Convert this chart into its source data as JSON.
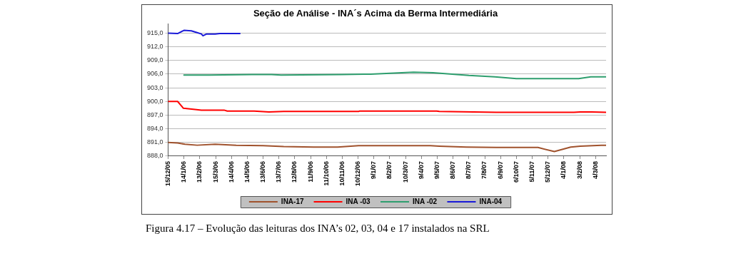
{
  "chart_data": {
    "type": "line",
    "title": "Seção de Análise - INA´s Acima da Berma Intermediária",
    "annotations": [
      "Figura 4.17 – Evolução das leituras dos INA’s 02, 03, 04 e 17 instalados na SRL"
    ],
    "legend": "bottom",
    "grid": "y",
    "marker": "none",
    "line_style": "solid",
    "xlim": [
      "2005-12-15",
      "2008-03-24"
    ],
    "ylim": [
      888,
      917
    ],
    "yticks": [
      {
        "value": 888,
        "label": "888,0"
      },
      {
        "value": 891,
        "label": "891,0"
      },
      {
        "value": 894,
        "label": "894,0"
      },
      {
        "value": 897,
        "label": "897,0"
      },
      {
        "value": 900,
        "label": "900,0"
      },
      {
        "value": 903,
        "label": "903,0"
      },
      {
        "value": 906,
        "label": "906,0"
      },
      {
        "value": 909,
        "label": "909,0"
      },
      {
        "value": 912,
        "label": "912,0"
      },
      {
        "value": 915,
        "label": "915,0"
      }
    ],
    "xticks": [
      {
        "value": "2005-12-15",
        "label": "15/12/05"
      },
      {
        "value": "2006-01-14",
        "label": "14/1/06"
      },
      {
        "value": "2006-02-13",
        "label": "13/2/06"
      },
      {
        "value": "2006-03-15",
        "label": "15/3/06"
      },
      {
        "value": "2006-04-14",
        "label": "14/4/06"
      },
      {
        "value": "2006-05-14",
        "label": "14/5/06"
      },
      {
        "value": "2006-06-13",
        "label": "13/6/06"
      },
      {
        "value": "2006-07-13",
        "label": "13/7/06"
      },
      {
        "value": "2006-08-12",
        "label": "12/8/06"
      },
      {
        "value": "2006-09-11",
        "label": "11/9/06"
      },
      {
        "value": "2006-10-11",
        "label": "11/10/06"
      },
      {
        "value": "2006-11-10",
        "label": "10/11/06"
      },
      {
        "value": "2006-12-10",
        "label": "10/12/06"
      },
      {
        "value": "2007-01-09",
        "label": "9/1/07"
      },
      {
        "value": "2007-02-08",
        "label": "8/2/07"
      },
      {
        "value": "2007-03-10",
        "label": "10/3/07"
      },
      {
        "value": "2007-04-09",
        "label": "9/4/07"
      },
      {
        "value": "2007-05-09",
        "label": "9/5/07"
      },
      {
        "value": "2007-06-08",
        "label": "8/6/07"
      },
      {
        "value": "2007-07-08",
        "label": "8/7/07"
      },
      {
        "value": "2007-08-07",
        "label": "7/8/07"
      },
      {
        "value": "2007-09-06",
        "label": "6/9/07"
      },
      {
        "value": "2007-10-06",
        "label": "6/10/07"
      },
      {
        "value": "2007-11-05",
        "label": "5/11/07"
      },
      {
        "value": "2007-12-05",
        "label": "5/12/07"
      },
      {
        "value": "2008-01-04",
        "label": "4/1/08"
      },
      {
        "value": "2008-02-03",
        "label": "3/2/08"
      },
      {
        "value": "2008-03-04",
        "label": "4/3/08"
      }
    ],
    "series": [
      {
        "name": "INA-17",
        "color": "#a0522d",
        "x": [
          "2005-12-15",
          "2006-01-02",
          "2006-01-16",
          "2006-02-08",
          "2006-03-14",
          "2006-04-23",
          "2006-06-13",
          "2006-07-22",
          "2006-09-17",
          "2006-11-01",
          "2006-12-11",
          "2007-01-03",
          "2007-04-26",
          "2007-05-13",
          "2007-07-03",
          "2007-08-29",
          "2007-11-16",
          "2007-12-17",
          "2008-01-17",
          "2008-02-04",
          "2008-03-15",
          "2008-03-24"
        ],
        "values": [
          891.0,
          890.9,
          890.6,
          890.4,
          890.6,
          890.4,
          890.3,
          890.1,
          890.0,
          890.0,
          890.3,
          890.3,
          890.3,
          890.2,
          890.0,
          889.9,
          889.9,
          889.0,
          890.0,
          890.2,
          890.4,
          890.4
        ]
      },
      {
        "name": "INA -03",
        "color": "#ff0000",
        "x": [
          "2005-12-15",
          "2006-01-02",
          "2006-01-13",
          "2006-02-07",
          "2006-02-16",
          "2006-03-31",
          "2006-04-06",
          "2006-05-27",
          "2006-06-24",
          "2006-07-22",
          "2006-12-11",
          "2006-12-13",
          "2007-05-08",
          "2007-05-13",
          "2007-08-29",
          "2007-11-05",
          "2008-01-23",
          "2008-02-04",
          "2008-02-26",
          "2008-03-24"
        ],
        "values": [
          900.0,
          900.0,
          898.5,
          898.2,
          898.1,
          898.1,
          897.9,
          897.9,
          897.7,
          897.8,
          897.8,
          897.9,
          897.9,
          897.8,
          897.6,
          897.6,
          897.6,
          897.7,
          897.7,
          897.6
        ]
      },
      {
        "name": "INA -02",
        "color": "#2e9e6e",
        "x": [
          "2006-01-14",
          "2006-03-03",
          "2006-05-23",
          "2006-06-29",
          "2006-07-17",
          "2006-11-09",
          "2007-01-03",
          "2007-03-25",
          "2007-05-01",
          "2007-07-08",
          "2007-08-26",
          "2007-10-06",
          "2008-02-01",
          "2008-02-24",
          "2008-03-24"
        ],
        "values": [
          905.8,
          905.8,
          905.9,
          905.9,
          905.8,
          905.9,
          906.0,
          906.4,
          906.3,
          905.7,
          905.4,
          905.0,
          905.0,
          905.4,
          905.4
        ]
      },
      {
        "name": "INA-04",
        "color": "#1a1ad8",
        "x": [
          "2005-12-15",
          "2006-01-02",
          "2006-01-14",
          "2006-01-28",
          "2006-02-08",
          "2006-02-16",
          "2006-02-19",
          "2006-02-26",
          "2006-03-14",
          "2006-03-23",
          "2006-04-30"
        ],
        "values": [
          915.0,
          914.9,
          915.6,
          915.5,
          915.1,
          914.8,
          914.4,
          914.8,
          914.8,
          914.9,
          914.9
        ]
      }
    ]
  }
}
